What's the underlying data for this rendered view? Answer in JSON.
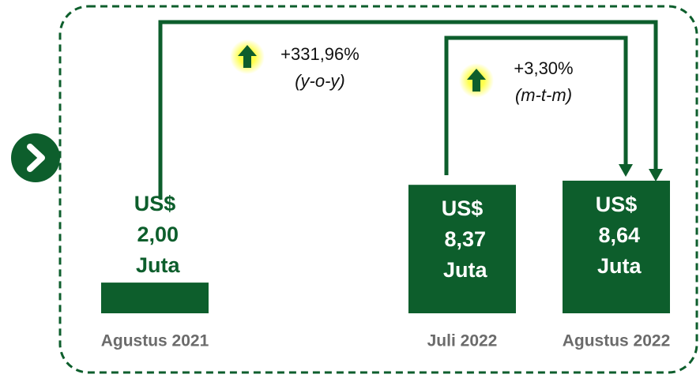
{
  "chart_data": {
    "type": "bar",
    "categories": [
      "Agustus 2021",
      "Juli 2022",
      "Agustus 2022"
    ],
    "values": [
      2.0,
      8.37,
      8.64
    ],
    "value_labels": [
      "US$ 2,00 Juta",
      "US$ 8,37 Juta",
      "US$ 8,64 Juta"
    ],
    "color": "#0d5e2c",
    "annotations": [
      {
        "change": "+331,96%",
        "period": "(y-o-y)"
      },
      {
        "change": "+3,30%",
        "period": "(m-t-m)"
      }
    ]
  }
}
